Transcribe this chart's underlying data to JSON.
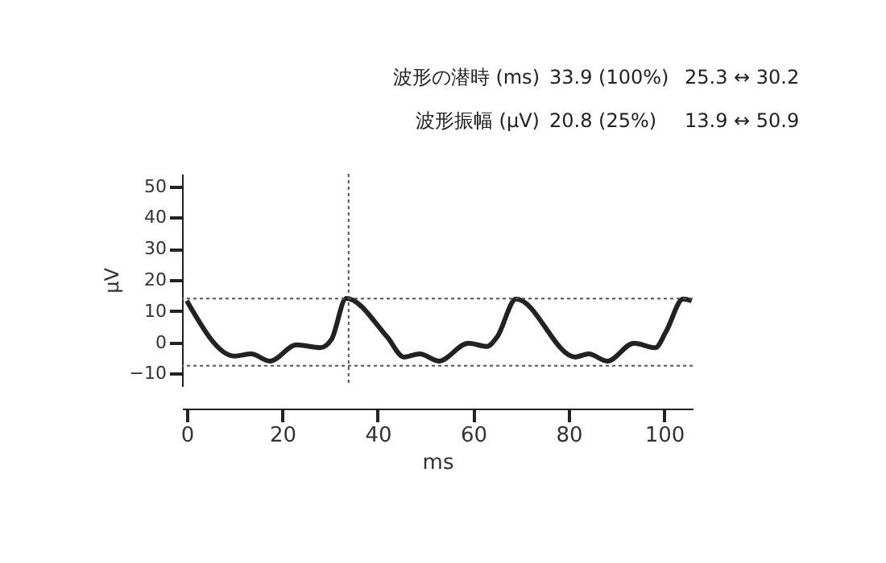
{
  "chart_data": {
    "type": "line",
    "xlabel": "ms",
    "ylabel": "μV",
    "annotations": [
      "波形の潜時 (ms)",
      "33.9 (100%)",
      "25.3 ↔ 30.2",
      "波形振幅 (μV)",
      "20.8 (25%)",
      "13.9 ↔ 50.9"
    ],
    "x": [
      0,
      10,
      13.5,
      17.4,
      23,
      28,
      30.3,
      33.4,
      42,
      45.5,
      48.8,
      52.8,
      59,
      62.9,
      65,
      69,
      81.4,
      84.2,
      88.1,
      93.7,
      98.2,
      100.4,
      104,
      105.8
    ],
    "series": [
      {
        "color": "#222222",
        "values": [
          13.3,
          -4.4,
          -3.7,
          -6,
          -0.8,
          -1.7,
          0.9,
          14.1,
          1.7,
          -4.7,
          -3.7,
          -6,
          -0.3,
          -1.3,
          1.7,
          13.9,
          -4.7,
          -3.7,
          -6,
          -0.3,
          -1.7,
          3.4,
          13.9,
          13.3
        ]
      }
    ],
    "xlim": [
      -1,
      106
    ],
    "ylim": [
      -14,
      54
    ],
    "xticks": [
      0,
      20,
      40,
      60,
      80,
      100
    ],
    "yticks": [
      -10,
      0,
      10,
      20,
      30,
      40,
      50
    ],
    "ref_lines": [
      {
        "axis": "y",
        "value": 14,
        "line_style": "dotted",
        "color": "#555555"
      },
      {
        "axis": "y",
        "value": -7.5,
        "line_style": "dotted",
        "color": "#555555"
      },
      {
        "axis": "x",
        "value": 33.9,
        "line_style": "dotted",
        "color": "#555555"
      }
    ],
    "marker": "none",
    "line_style": "solid"
  }
}
